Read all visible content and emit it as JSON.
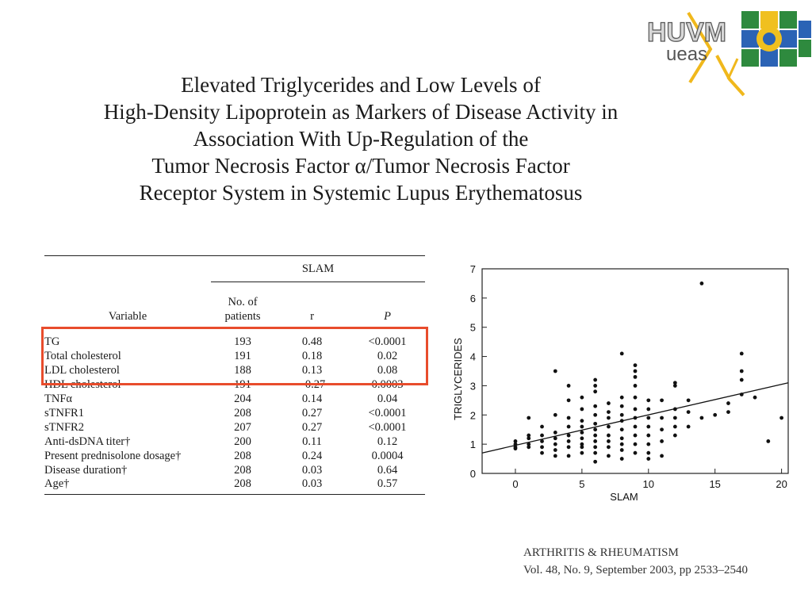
{
  "logo": {
    "letters_top": "HUVM",
    "letters_bottom": "ueas"
  },
  "title_lines": [
    "Elevated Triglycerides and Low Levels of",
    "High-Density Lipoprotein as Markers of Disease Activity in",
    "Association With Up-Regulation of the",
    "Tumor Necrosis Factor α/Tumor Necrosis Factor",
    "Receptor System in Systemic Lupus Erythematosus"
  ],
  "table": {
    "group_header": "SLAM",
    "col_variable": "Variable",
    "col_patients": "No. of patients",
    "col_r": "r",
    "col_p": "P",
    "rows": [
      {
        "variable": "TG",
        "patients": "193",
        "r": "0.48",
        "p": "<0.0001"
      },
      {
        "variable": "Total cholesterol",
        "patients": "191",
        "r": "0.18",
        "p": "0.02"
      },
      {
        "variable": "LDL cholesterol",
        "patients": "188",
        "r": "0.13",
        "p": "0.08"
      },
      {
        "variable": "HDL cholesterol",
        "patients": "191",
        "r": "−0.27",
        "p": "0.0003"
      },
      {
        "variable": "TNFα",
        "patients": "204",
        "r": "0.14",
        "p": "0.04"
      },
      {
        "variable": "sTNFR1",
        "patients": "208",
        "r": "0.27",
        "p": "<0.0001"
      },
      {
        "variable": "sTNFR2",
        "patients": "207",
        "r": "0.27",
        "p": "<0.0001"
      },
      {
        "variable": "Anti-dsDNA titer†",
        "patients": "200",
        "r": "0.11",
        "p": "0.12"
      },
      {
        "variable": "Present prednisolone dosage†",
        "patients": "208",
        "r": "0.24",
        "p": "0.0004"
      },
      {
        "variable": "Disease duration†",
        "patients": "208",
        "r": "0.03",
        "p": "0.64"
      },
      {
        "variable": "Age†",
        "patients": "208",
        "r": "0.03",
        "p": "0.57"
      }
    ],
    "highlight_color": "#e84c2c"
  },
  "chart_data": {
    "type": "scatter",
    "xlabel": "SLAM",
    "ylabel": "TRIGLYCERIDES",
    "xlim": [
      -2.5,
      20.5
    ],
    "ylim": [
      0,
      7
    ],
    "xticks": [
      0,
      5,
      10,
      15,
      20
    ],
    "yticks": [
      0,
      1,
      2,
      3,
      4,
      5,
      6,
      7
    ],
    "grid": false,
    "fit_line": {
      "x": [
        -2.5,
        20.5
      ],
      "y": [
        0.7,
        3.1
      ]
    },
    "points": [
      [
        0,
        0.9
      ],
      [
        0,
        1.0
      ],
      [
        0,
        1.1
      ],
      [
        0,
        0.85
      ],
      [
        1,
        1.0
      ],
      [
        1,
        1.2
      ],
      [
        1,
        0.9
      ],
      [
        1,
        1.3
      ],
      [
        1,
        1.9
      ],
      [
        2,
        0.7
      ],
      [
        2,
        0.9
      ],
      [
        2,
        1.1
      ],
      [
        2,
        1.3
      ],
      [
        2,
        1.6
      ],
      [
        3,
        0.6
      ],
      [
        3,
        0.8
      ],
      [
        3,
        1.0
      ],
      [
        3,
        1.2
      ],
      [
        3,
        1.4
      ],
      [
        3,
        2.0
      ],
      [
        3,
        3.5
      ],
      [
        4,
        0.6
      ],
      [
        4,
        0.9
      ],
      [
        4,
        1.1
      ],
      [
        4,
        1.3
      ],
      [
        4,
        1.6
      ],
      [
        4,
        1.9
      ],
      [
        4,
        2.5
      ],
      [
        4,
        3.0
      ],
      [
        5,
        0.7
      ],
      [
        5,
        0.9
      ],
      [
        5,
        1.0
      ],
      [
        5,
        1.2
      ],
      [
        5,
        1.4
      ],
      [
        5,
        1.6
      ],
      [
        5,
        1.8
      ],
      [
        5,
        2.2
      ],
      [
        5,
        2.6
      ],
      [
        6,
        0.4
      ],
      [
        6,
        0.7
      ],
      [
        6,
        0.9
      ],
      [
        6,
        1.1
      ],
      [
        6,
        1.3
      ],
      [
        6,
        1.5
      ],
      [
        6,
        1.7
      ],
      [
        6,
        2.0
      ],
      [
        6,
        2.3
      ],
      [
        6,
        2.8
      ],
      [
        6,
        3.0
      ],
      [
        6,
        3.2
      ],
      [
        7,
        0.6
      ],
      [
        7,
        0.9
      ],
      [
        7,
        1.1
      ],
      [
        7,
        1.3
      ],
      [
        7,
        1.6
      ],
      [
        7,
        1.9
      ],
      [
        7,
        2.1
      ],
      [
        7,
        2.4
      ],
      [
        8,
        0.5
      ],
      [
        8,
        0.8
      ],
      [
        8,
        1.0
      ],
      [
        8,
        1.2
      ],
      [
        8,
        1.5
      ],
      [
        8,
        1.8
      ],
      [
        8,
        2.0
      ],
      [
        8,
        2.3
      ],
      [
        8,
        2.6
      ],
      [
        8,
        4.1
      ],
      [
        9,
        0.7
      ],
      [
        9,
        1.0
      ],
      [
        9,
        1.3
      ],
      [
        9,
        1.6
      ],
      [
        9,
        1.9
      ],
      [
        9,
        2.2
      ],
      [
        9,
        2.6
      ],
      [
        9,
        3.0
      ],
      [
        9,
        3.3
      ],
      [
        9,
        3.5
      ],
      [
        9,
        3.7
      ],
      [
        10,
        0.5
      ],
      [
        10,
        0.7
      ],
      [
        10,
        1.0
      ],
      [
        10,
        1.3
      ],
      [
        10,
        1.6
      ],
      [
        10,
        1.9
      ],
      [
        10,
        2.2
      ],
      [
        10,
        2.5
      ],
      [
        11,
        0.6
      ],
      [
        11,
        1.1
      ],
      [
        11,
        1.5
      ],
      [
        11,
        1.9
      ],
      [
        11,
        2.5
      ],
      [
        12,
        1.3
      ],
      [
        12,
        1.6
      ],
      [
        12,
        1.9
      ],
      [
        12,
        2.2
      ],
      [
        12,
        3.0
      ],
      [
        12,
        3.1
      ],
      [
        13,
        1.6
      ],
      [
        13,
        2.1
      ],
      [
        13,
        2.5
      ],
      [
        14,
        1.9
      ],
      [
        14,
        6.5
      ],
      [
        15,
        2.0
      ],
      [
        16,
        2.1
      ],
      [
        16,
        2.4
      ],
      [
        17,
        2.7
      ],
      [
        17,
        3.2
      ],
      [
        17,
        3.5
      ],
      [
        17,
        4.1
      ],
      [
        18,
        2.6
      ],
      [
        19,
        1.1
      ],
      [
        20,
        1.9
      ]
    ]
  },
  "citation": {
    "journal": "ARTHRITIS & RHEUMATISM",
    "volume": "Vol. 48, No. 9, September 2003, pp 2533–2540"
  }
}
